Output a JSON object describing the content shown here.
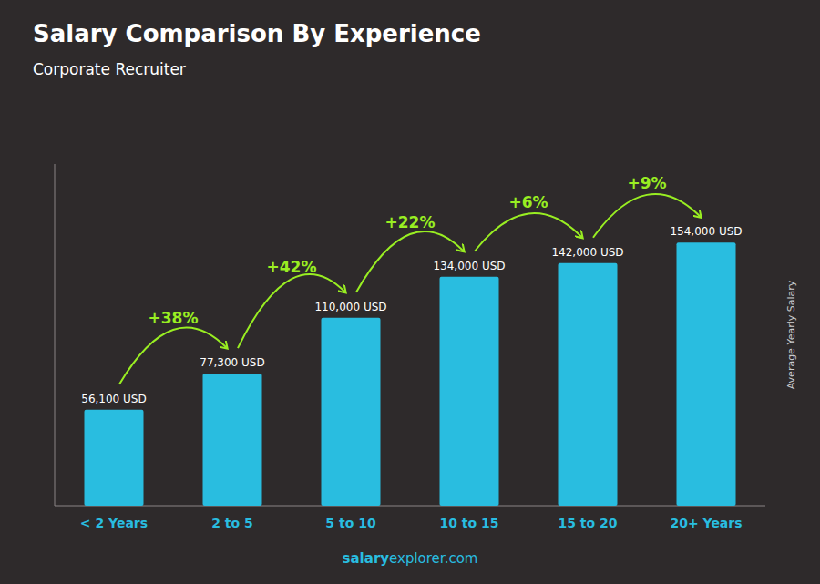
{
  "chart_data": {
    "type": "bar",
    "title": "Salary Comparison By Experience",
    "subtitle": "Corporate Recruiter",
    "ylabel": "Average Yearly Salary",
    "categories": [
      "< 2 Years",
      "2 to 5",
      "5 to 10",
      "10 to 15",
      "15 to 20",
      "20+ Years"
    ],
    "values": [
      56100,
      77300,
      110000,
      134000,
      142000,
      154000
    ],
    "value_labels": [
      "56,100 USD",
      "77,300 USD",
      "110,000 USD",
      "134,000 USD",
      "142,000 USD",
      "154,000 USD"
    ],
    "data_labels": true,
    "annotations": [
      "+38%",
      "+42%",
      "+22%",
      "+6%",
      "+9%"
    ],
    "footer": [
      "salary",
      "explorer.com"
    ],
    "color": "#29bde0",
    "ylim": [
      0,
      200000
    ],
    "tick_labels": "x",
    "grid": false
  }
}
